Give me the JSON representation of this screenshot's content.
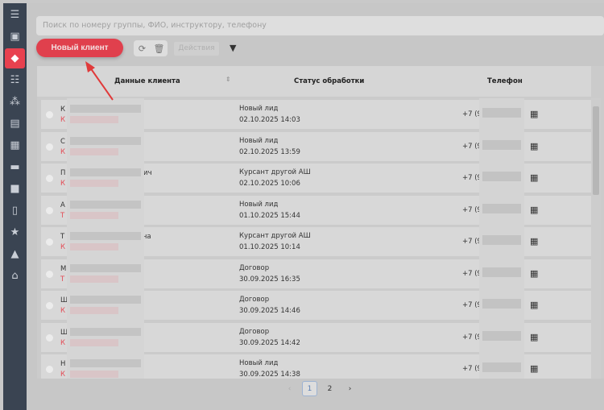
{
  "search": {
    "placeholder": "Поиск по номеру группы, ФИО, инструктору, телефону"
  },
  "toolbar": {
    "new_client": "Новый клиент",
    "actions": "Действия"
  },
  "table": {
    "headers": [
      "Данные клиента",
      "Статус обработки",
      "Телефон"
    ],
    "rows": [
      {
        "name": "К                              вна",
        "sub": "К",
        "status": "Новый лид",
        "date": "02.10.2025 14:03",
        "phone": "+7 (9"
      },
      {
        "name": "С",
        "sub": "К",
        "status": "Новый лид",
        "date": "02.10.2025 13:59",
        "phone": "+7 (9"
      },
      {
        "name": "П                              рович",
        "sub": "К",
        "status": "Курсант другой АШ",
        "date": "02.10.2025 10:06",
        "phone": "+7 (9"
      },
      {
        "name": "А",
        "sub": "Т",
        "status": "Новый лид",
        "date": "01.10.2025 15:44",
        "phone": "+7 (9"
      },
      {
        "name": "Т                              ровна",
        "sub": "К",
        "status": "Курсант другой АШ",
        "date": "01.10.2025 10:14",
        "phone": "+7 (9"
      },
      {
        "name": "М                              вна",
        "sub": "Т",
        "status": "Договор",
        "date": "30.09.2025 16:35",
        "phone": "+7 (9"
      },
      {
        "name": "Щ                          ич",
        "sub": "К",
        "status": "Договор",
        "date": "30.09.2025 14:46",
        "phone": "+7 (9"
      },
      {
        "name": "Щ                          ич",
        "sub": "К",
        "status": "Договор",
        "date": "30.09.2025 14:42",
        "phone": "+7 (9"
      },
      {
        "name": "Н",
        "sub": "К",
        "status": "Новый лид",
        "date": "30.09.2025 14:38",
        "phone": "+7 (9"
      }
    ]
  },
  "pagination": {
    "pages": [
      "1",
      "2"
    ],
    "current": "1",
    "prev": "‹",
    "next": "›"
  },
  "sidebar": {
    "icons": [
      "menu-icon",
      "monitor-user-icon",
      "diamond-icon",
      "checklist-icon",
      "group-icon",
      "money-icon",
      "calendar-icon",
      "car-icon",
      "book-icon",
      "document-icon",
      "star-icon",
      "school-icon",
      "home-icon"
    ]
  },
  "colors": {
    "accent": "#e0404d",
    "sidebar": "#3a4452"
  }
}
